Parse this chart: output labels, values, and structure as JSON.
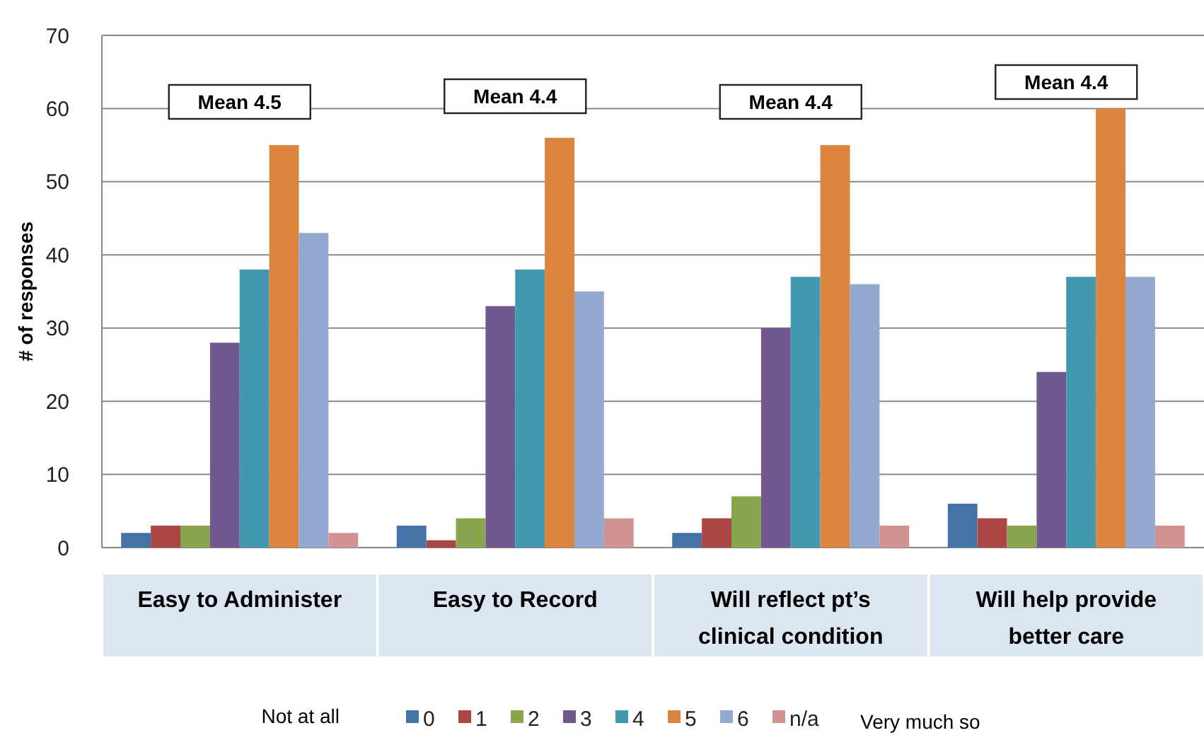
{
  "chart_data": {
    "type": "bar",
    "ylabel": "# of responses",
    "categories": [
      "Easy to Administer",
      "Easy to Record",
      "Will reflect pt’s clinical condition",
      "Will help provide better care"
    ],
    "series": [
      {
        "name": "0",
        "color": "#4572a7",
        "values": [
          2,
          3,
          2,
          6
        ]
      },
      {
        "name": "1",
        "color": "#aa4643",
        "values": [
          3,
          1,
          4,
          4
        ]
      },
      {
        "name": "2",
        "color": "#89a54e",
        "values": [
          3,
          4,
          7,
          3
        ]
      },
      {
        "name": "3",
        "color": "#71588f",
        "values": [
          28,
          33,
          30,
          24
        ]
      },
      {
        "name": "4",
        "color": "#4198af",
        "values": [
          38,
          38,
          37,
          37
        ]
      },
      {
        "name": "5",
        "color": "#db843d",
        "values": [
          55,
          56,
          55,
          60
        ]
      },
      {
        "name": "6",
        "color": "#93a9cf",
        "values": [
          43,
          35,
          36,
          37
        ]
      },
      {
        "name": "n/a",
        "color": "#d19392",
        "values": [
          2,
          4,
          3,
          3
        ]
      }
    ],
    "ylim": [
      0,
      70
    ],
    "yticks": [
      0,
      10,
      20,
      30,
      40,
      50,
      60,
      70
    ],
    "grid": "y",
    "legend": "bottom",
    "annotations": [
      "Mean 4.5",
      "Mean 4.4",
      "Mean 4.4",
      "Mean 4.4",
      "Not at all",
      "Very much so"
    ]
  }
}
